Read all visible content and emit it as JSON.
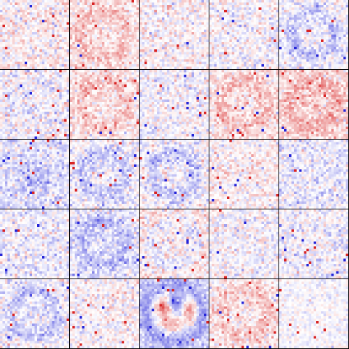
{
  "colors": {
    "negative": "#1a1ad6",
    "neutral": "#ffffff",
    "positive": "#d61a1a",
    "border": "#000000"
  },
  "tiles": [
    {
      "id": "filter-1",
      "bias": 0.05,
      "noise": 0.32,
      "pattern": "none"
    },
    {
      "id": "filter-2",
      "bias": 0.12,
      "noise": 0.3,
      "pattern": "ring_pos"
    },
    {
      "id": "filter-3",
      "bias": 0.02,
      "noise": 0.3,
      "pattern": "none"
    },
    {
      "id": "filter-4",
      "bias": -0.02,
      "noise": 0.3,
      "pattern": "none"
    },
    {
      "id": "filter-5",
      "bias": -0.05,
      "noise": 0.3,
      "pattern": "ring_neg"
    },
    {
      "id": "filter-6",
      "bias": -0.03,
      "noise": 0.34,
      "pattern": "none"
    },
    {
      "id": "filter-7",
      "bias": 0.1,
      "noise": 0.3,
      "pattern": "ring_pos"
    },
    {
      "id": "filter-8",
      "bias": -0.02,
      "noise": 0.3,
      "pattern": "none"
    },
    {
      "id": "filter-9",
      "bias": 0.12,
      "noise": 0.3,
      "pattern": "ring_pos"
    },
    {
      "id": "filter-10",
      "bias": 0.18,
      "noise": 0.3,
      "pattern": "ring_pos"
    },
    {
      "id": "filter-11",
      "bias": -0.12,
      "noise": 0.3,
      "pattern": "blob_neg"
    },
    {
      "id": "filter-12",
      "bias": -0.04,
      "noise": 0.3,
      "pattern": "ring_neg"
    },
    {
      "id": "filter-13",
      "bias": -0.03,
      "noise": 0.3,
      "pattern": "ring_neg"
    },
    {
      "id": "filter-14",
      "bias": 0.05,
      "noise": 0.3,
      "pattern": "none"
    },
    {
      "id": "filter-15",
      "bias": -0.08,
      "noise": 0.3,
      "pattern": "none"
    },
    {
      "id": "filter-16",
      "bias": -0.06,
      "noise": 0.3,
      "pattern": "none"
    },
    {
      "id": "filter-17",
      "bias": -0.12,
      "noise": 0.3,
      "pattern": "ring_neg"
    },
    {
      "id": "filter-18",
      "bias": 0.1,
      "noise": 0.32,
      "pattern": "ring_neg"
    },
    {
      "id": "filter-19",
      "bias": -0.02,
      "noise": 0.3,
      "pattern": "none"
    },
    {
      "id": "filter-20",
      "bias": -0.05,
      "noise": 0.3,
      "pattern": "none"
    },
    {
      "id": "filter-21",
      "bias": -0.04,
      "noise": 0.3,
      "pattern": "ring_neg"
    },
    {
      "id": "filter-22",
      "bias": 0.02,
      "noise": 0.3,
      "pattern": "none"
    },
    {
      "id": "filter-23",
      "bias": -0.2,
      "noise": 0.22,
      "pattern": "digit"
    },
    {
      "id": "filter-24",
      "bias": 0.08,
      "noise": 0.3,
      "pattern": "ring_pos"
    },
    {
      "id": "filter-25",
      "bias": -0.02,
      "noise": 0.18,
      "pattern": "none"
    }
  ]
}
